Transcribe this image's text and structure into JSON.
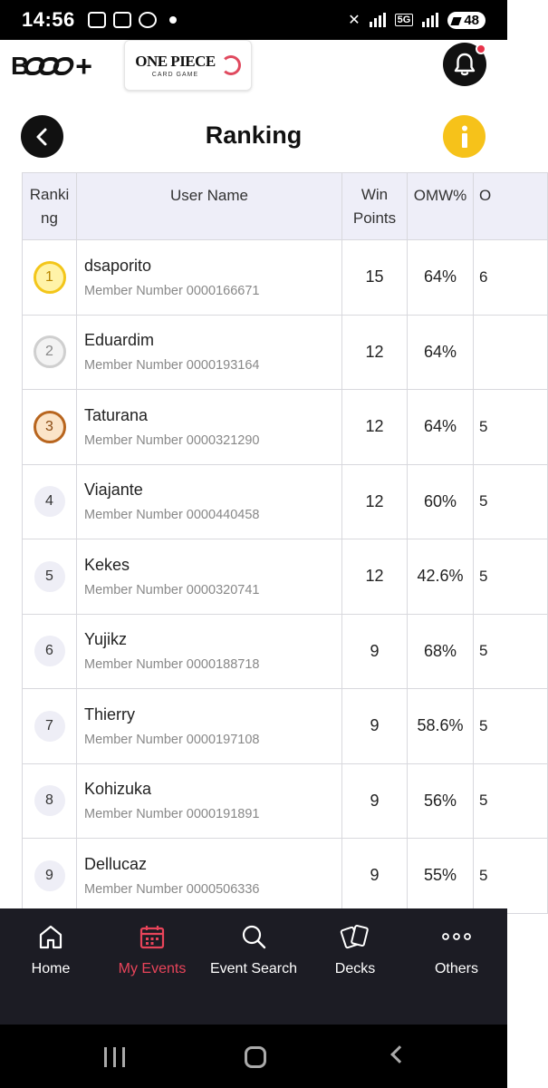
{
  "status_bar": {
    "time": "14:56",
    "network": "5G",
    "battery": "48"
  },
  "header": {
    "brand_logo": "B",
    "game_logo_title": "ONE PIECE",
    "game_logo_subtitle": "CARD GAME",
    "notification_icon": "bell-icon",
    "accent_color": "#e8334a"
  },
  "title_bar": {
    "title": "Ranking",
    "back_icon": "chevron-left-icon",
    "info_icon": "info-icon",
    "info_color": "#f6c21a"
  },
  "table": {
    "headers": {
      "rank": "Ranki\nng",
      "user": "User Name",
      "win": "Win\nPoints",
      "omw": "OMW%",
      "extra": "O"
    },
    "rows": [
      {
        "rank": "1",
        "medal": "gold",
        "name": "dsaporito",
        "member": "Member Number 0000166671",
        "win": "15",
        "omw": "64%",
        "extra": "6"
      },
      {
        "rank": "2",
        "medal": "silver",
        "name": "Eduardim",
        "member": "Member Number 0000193164",
        "win": "12",
        "omw": "64%",
        "extra": ""
      },
      {
        "rank": "3",
        "medal": "bronze",
        "name": "Taturana",
        "member": "Member Number 0000321290",
        "win": "12",
        "omw": "64%",
        "extra": "5"
      },
      {
        "rank": "4",
        "medal": "plain",
        "name": "Viajante",
        "member": "Member Number 0000440458",
        "win": "12",
        "omw": "60%",
        "extra": "5"
      },
      {
        "rank": "5",
        "medal": "plain",
        "name": "Kekes",
        "member": "Member Number 0000320741",
        "win": "12",
        "omw": "42.6%",
        "extra": "5"
      },
      {
        "rank": "6",
        "medal": "plain",
        "name": "Yujikz",
        "member": "Member Number 0000188718",
        "win": "9",
        "omw": "68%",
        "extra": "5"
      },
      {
        "rank": "7",
        "medal": "plain",
        "name": "Thierry",
        "member": "Member Number 0000197108",
        "win": "9",
        "omw": "58.6%",
        "extra": "5"
      },
      {
        "rank": "8",
        "medal": "plain",
        "name": "Kohizuka",
        "member": "Member Number 0000191891",
        "win": "9",
        "omw": "56%",
        "extra": "5"
      },
      {
        "rank": "9",
        "medal": "plain",
        "name": "Dellucaz",
        "member": "Member Number 0000506336",
        "win": "9",
        "omw": "55%",
        "extra": "5"
      }
    ]
  },
  "bottom_nav": {
    "active_color": "#e8445a",
    "items": [
      {
        "label": "Home",
        "icon": "home-icon"
      },
      {
        "label": "My Events",
        "icon": "calendar-icon"
      },
      {
        "label": "Event Search",
        "icon": "search-icon"
      },
      {
        "label": "Decks",
        "icon": "cards-icon"
      },
      {
        "label": "Others",
        "icon": "more-icon"
      }
    ]
  }
}
